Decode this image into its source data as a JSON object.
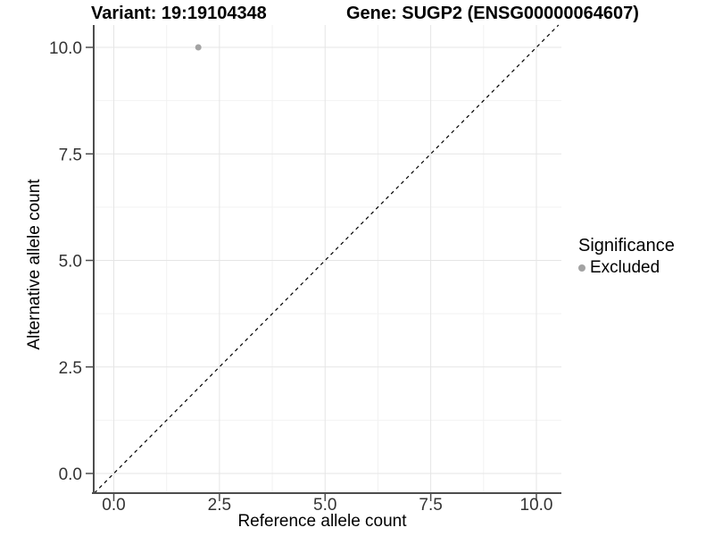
{
  "chart_data": {
    "type": "scatter",
    "titles": {
      "left": "Variant: 19:19104348",
      "right": "Gene: SUGP2 (ENSG00000064607)"
    },
    "xlabel": "Reference allele count",
    "ylabel": "Alternative allele count",
    "x_ticks": [
      "0.0",
      "2.5",
      "5.0",
      "7.5",
      "10.0"
    ],
    "x_tick_values": [
      0,
      2.5,
      5,
      7.5,
      10
    ],
    "y_ticks": [
      "0.0",
      "2.5",
      "5.0",
      "7.5",
      "10.0"
    ],
    "y_tick_values": [
      0,
      2.5,
      5,
      7.5,
      10
    ],
    "xlim": [
      -0.5,
      10.6
    ],
    "ylim": [
      -0.5,
      10.5
    ],
    "grid": "major+minor",
    "identity_line": {
      "slope": 1,
      "intercept": 0,
      "style": "dashed",
      "color": "#000000"
    },
    "points": [
      {
        "x": 2,
        "y": 10,
        "significance": "Excluded"
      }
    ],
    "point_color": "#a3a3a3",
    "point_radius": 3.5,
    "legend": {
      "title": "Significance",
      "position": "right",
      "entries": [
        {
          "label": "Excluded",
          "color": "#a3a3a3"
        }
      ]
    },
    "colors": {
      "background": "#ffffff",
      "grid_major": "#e5e5e5",
      "grid_minor": "#f2f2f2",
      "axis_line": "#4d4d4d",
      "tick_label": "#333333",
      "axis_title": "#000000"
    }
  }
}
